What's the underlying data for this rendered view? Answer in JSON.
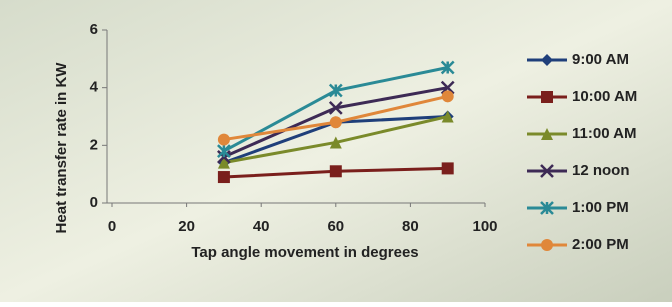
{
  "chart_data": {
    "type": "line",
    "y_label": "Heat transfer rate in KW",
    "x_label": "Tap angle movement in degrees",
    "x": [
      30,
      60,
      90
    ],
    "xlim": [
      0,
      100
    ],
    "xticks": [
      0,
      20,
      40,
      60,
      80,
      100
    ],
    "ylim": [
      0,
      6
    ],
    "yticks": [
      0,
      2,
      4,
      6
    ],
    "legend": "right",
    "series": [
      {
        "name": "9:00 AM",
        "color": "#1f3f7a",
        "marker": "diamond",
        "values": [
          1.4,
          2.8,
          3.0
        ]
      },
      {
        "name": "10:00 AM",
        "color": "#7a1f1c",
        "marker": "square",
        "values": [
          0.9,
          1.1,
          1.2
        ]
      },
      {
        "name": "11:00 AM",
        "color": "#7a8a2a",
        "marker": "triangle",
        "values": [
          1.4,
          2.1,
          3.0
        ]
      },
      {
        "name": "12 noon",
        "color": "#3d2a55",
        "marker": "x",
        "values": [
          1.6,
          3.3,
          4.0
        ]
      },
      {
        "name": "1:00 PM",
        "color": "#2a8a96",
        "marker": "star",
        "values": [
          1.8,
          3.9,
          4.7
        ]
      },
      {
        "name": "2:00 PM",
        "color": "#e0873a",
        "marker": "circle",
        "values": [
          2.2,
          2.8,
          3.7
        ]
      }
    ]
  }
}
